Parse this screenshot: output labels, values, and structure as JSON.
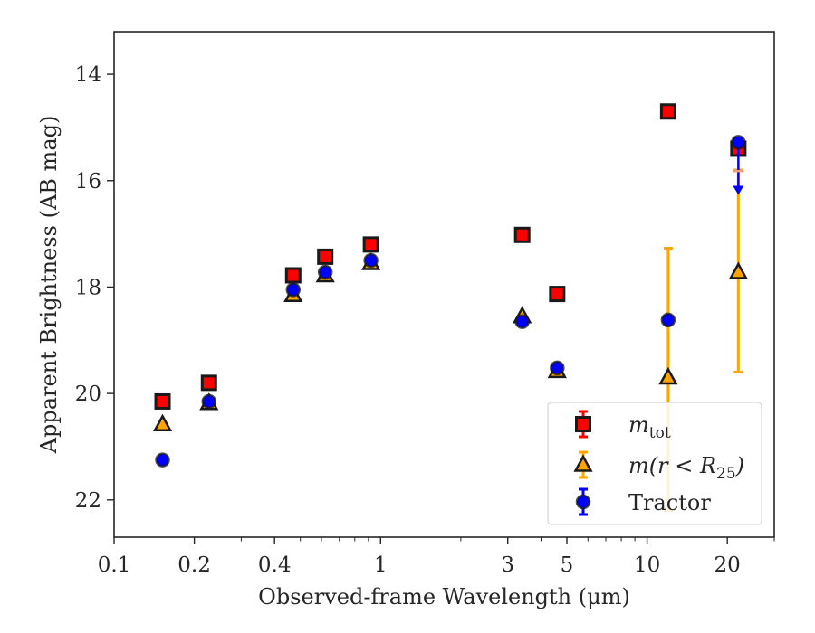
{
  "chart_data": {
    "type": "scatter",
    "xscale": "log",
    "xlim": [
      0.1,
      30
    ],
    "ylim": [
      22.7,
      13.2
    ],
    "y_inverted": true,
    "grid": false,
    "legend_position": "lower-right",
    "xlabel": "Observed-frame Wavelength (μm)",
    "ylabel": "Apparent Brightness (AB mag)",
    "x_ticks": [
      {
        "value": 0.1,
        "label": "0.1"
      },
      {
        "value": 0.2,
        "label": "0.2"
      },
      {
        "value": 0.4,
        "label": "0.4"
      },
      {
        "value": 1,
        "label": "1"
      },
      {
        "value": 3,
        "label": "3"
      },
      {
        "value": 5,
        "label": "5"
      },
      {
        "value": 10,
        "label": "10"
      },
      {
        "value": 20,
        "label": "20"
      }
    ],
    "y_ticks": [
      {
        "value": 14,
        "label": "14"
      },
      {
        "value": 16,
        "label": "16"
      },
      {
        "value": 18,
        "label": "18"
      },
      {
        "value": 20,
        "label": "20"
      },
      {
        "value": 22,
        "label": "22"
      }
    ],
    "series": [
      {
        "name": "m_tot",
        "marker": "square",
        "color": "#ff0000",
        "edge_color": "#1a1a1a",
        "points": [
          {
            "x": 0.152,
            "y": 20.15
          },
          {
            "x": 0.227,
            "y": 19.8
          },
          {
            "x": 0.47,
            "y": 17.78
          },
          {
            "x": 0.62,
            "y": 17.43
          },
          {
            "x": 0.92,
            "y": 17.2
          },
          {
            "x": 3.4,
            "y": 17.02
          },
          {
            "x": 4.6,
            "y": 18.13
          },
          {
            "x": 12.0,
            "y": 14.7
          },
          {
            "x": 22.0,
            "y": 15.4
          }
        ]
      },
      {
        "name": "m(r<R25)",
        "marker": "triangle",
        "color": "#ffa500",
        "edge_color": "#1a1a1a",
        "points": [
          {
            "x": 0.152,
            "y": 20.58
          },
          {
            "x": 0.227,
            "y": 20.18
          },
          {
            "x": 0.47,
            "y": 18.15
          },
          {
            "x": 0.62,
            "y": 17.78
          },
          {
            "x": 0.92,
            "y": 17.55
          },
          {
            "x": 3.4,
            "y": 18.55
          },
          {
            "x": 4.6,
            "y": 19.58
          },
          {
            "x": 12.0,
            "y": 19.7,
            "err_lo": 2.43,
            "err_hi": 2.5
          },
          {
            "x": 22.0,
            "y": 17.72,
            "err_lo": 1.92,
            "err_hi": 1.88
          }
        ]
      },
      {
        "name": "Tractor",
        "marker": "circle",
        "color": "#0000ff",
        "edge_color": "#1a1a1a",
        "points": [
          {
            "x": 0.152,
            "y": 21.25
          },
          {
            "x": 0.227,
            "y": 20.15
          },
          {
            "x": 0.47,
            "y": 18.05
          },
          {
            "x": 0.62,
            "y": 17.72
          },
          {
            "x": 0.92,
            "y": 17.5
          },
          {
            "x": 3.4,
            "y": 18.65
          },
          {
            "x": 4.6,
            "y": 19.52
          },
          {
            "x": 12.0,
            "y": 18.62
          },
          {
            "x": 22.0,
            "y": 15.28,
            "upper_limit_arrow_to": 16.2
          }
        ]
      }
    ]
  },
  "legend": {
    "entries": [
      {
        "label_base": "m",
        "label_sub": "tot",
        "marker": "square"
      },
      {
        "label_base": "m(r < R",
        "label_sub": "25",
        "label_tail": ")",
        "marker": "triangle"
      },
      {
        "label_base": "Tractor",
        "label_sub": "",
        "marker": "circle"
      }
    ]
  }
}
